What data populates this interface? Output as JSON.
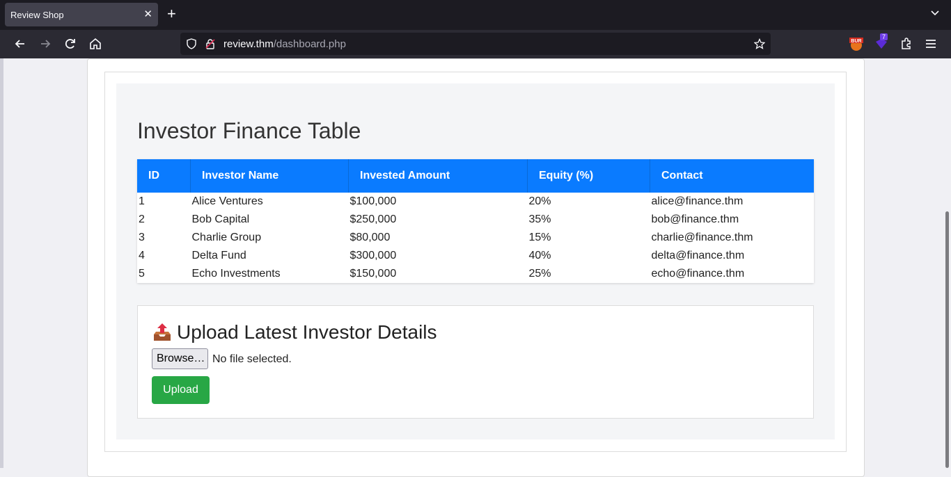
{
  "browser": {
    "tab_title": "Review Shop",
    "tab_close": "✕",
    "new_tab": "+",
    "url_domain": "review.thm",
    "url_path": "/dashboard.php",
    "extension_badge": "7",
    "icons": [
      "back-icon",
      "forward-icon",
      "reload-icon",
      "home-icon",
      "shield-icon",
      "lock-icon",
      "star-icon",
      "extensions-icon",
      "menu-icon"
    ]
  },
  "page": {
    "heading": "Investor Finance Table",
    "table": {
      "columns": [
        "ID",
        "Investor Name",
        "Invested Amount",
        "Equity (%)",
        "Contact"
      ],
      "rows": [
        [
          "1",
          "Alice Ventures",
          "$100,000",
          "20%",
          "alice@finance.thm"
        ],
        [
          "2",
          "Bob Capital",
          "$250,000",
          "35%",
          "bob@finance.thm"
        ],
        [
          "3",
          "Charlie Group",
          "$80,000",
          "15%",
          "charlie@finance.thm"
        ],
        [
          "4",
          "Delta Fund",
          "$300,000",
          "40%",
          "delta@finance.thm"
        ],
        [
          "5",
          "Echo Investments",
          "$150,000",
          "25%",
          "echo@finance.thm"
        ]
      ]
    },
    "upload": {
      "title": "Upload Latest Investor Details",
      "browse_label": "Browse…",
      "file_status": "No file selected.",
      "upload_label": "Upload"
    }
  },
  "colors": {
    "header_blue": "#0a7bff",
    "upload_green": "#28a745",
    "chrome_dark": "#1c1b22"
  }
}
